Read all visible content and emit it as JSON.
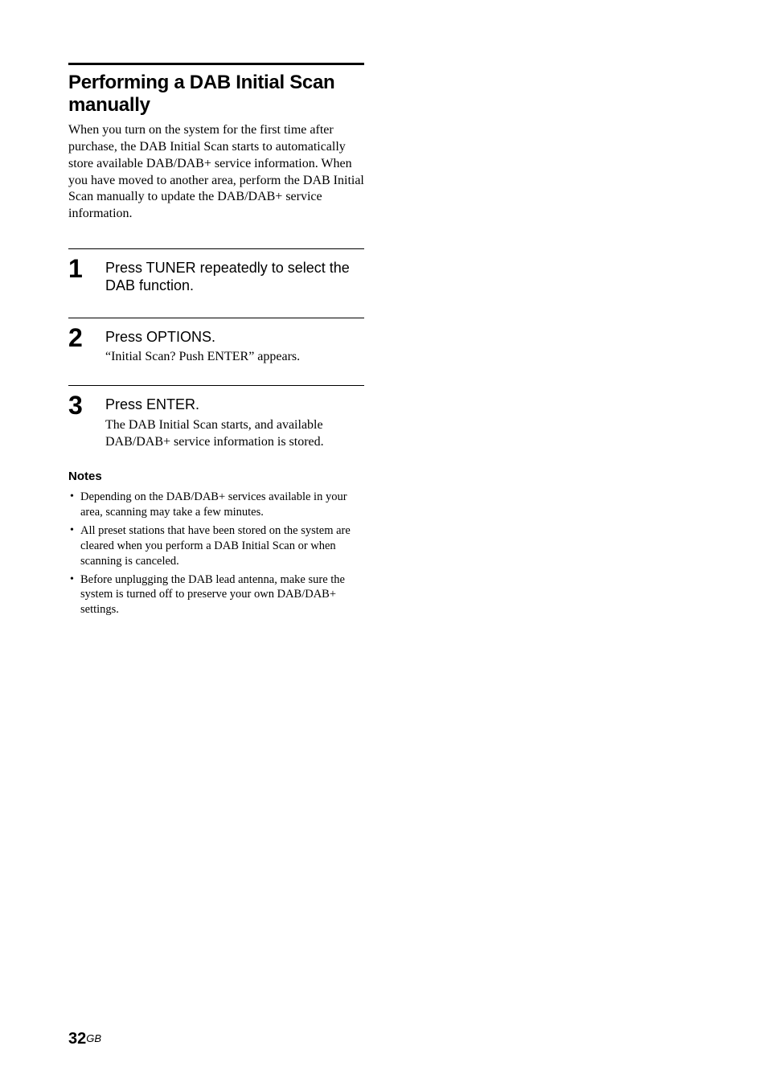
{
  "title": "Performing a DAB Initial Scan manually",
  "intro": "When you turn on the system for the first time after purchase, the DAB Initial Scan starts to automatically store available DAB/DAB+ service information. When you have moved to another area, perform the DAB Initial Scan manually to update the DAB/DAB+ service information.",
  "steps": [
    {
      "number": "1",
      "instruction": "Press TUNER repeatedly to select the DAB function.",
      "detail": ""
    },
    {
      "number": "2",
      "instruction": "Press OPTIONS.",
      "detail": "“Initial Scan? Push ENTER” appears."
    },
    {
      "number": "3",
      "instruction": "Press ENTER.",
      "detail": "The DAB Initial Scan starts, and available DAB/DAB+ service information is stored."
    }
  ],
  "notes_heading": "Notes",
  "notes": [
    "Depending on the DAB/DAB+ services available in your area, scanning may take a few minutes.",
    "All preset stations that have been stored on the system are cleared when you perform a DAB Initial Scan or when scanning is canceled.",
    "Before unplugging the DAB lead antenna, make sure the system is turned off to preserve your own DAB/DAB+ settings."
  ],
  "footer": {
    "page": "32",
    "lang": "GB"
  },
  "colors": {
    "text": "#000000",
    "background": "#ffffff",
    "rule": "#000000"
  }
}
